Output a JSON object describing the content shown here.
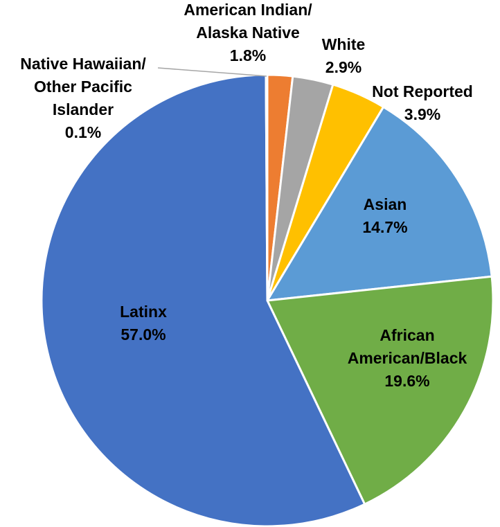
{
  "chart_data": {
    "type": "pie",
    "start_angle_deg": 0,
    "direction": "clockwise",
    "slices": [
      {
        "label_lines": [
          "American Indian/",
          "Alaska Native"
        ],
        "value": 1.8,
        "value_label": "1.8%",
        "color": "#ED7D31"
      },
      {
        "label_lines": [
          "White"
        ],
        "value": 2.9,
        "value_label": "2.9%",
        "color": "#A5A5A5"
      },
      {
        "label_lines": [
          "Not Reported"
        ],
        "value": 3.9,
        "value_label": "3.9%",
        "color": "#FFC000"
      },
      {
        "label_lines": [
          "Asian"
        ],
        "value": 14.7,
        "value_label": "14.7%",
        "color": "#5B9BD5"
      },
      {
        "label_lines": [
          "African",
          "American/Black"
        ],
        "value": 19.6,
        "value_label": "19.6%",
        "color": "#70AD47"
      },
      {
        "label_lines": [
          "Latinx"
        ],
        "value": 57.0,
        "value_label": "57.0%",
        "color": "#4472C4"
      },
      {
        "label_lines": [
          "Native Hawaiian/",
          "Other Pacific",
          "Islander"
        ],
        "value": 0.1,
        "value_label": "0.1%",
        "color": "#264478"
      }
    ],
    "slice_border_color": "#FFFFFF",
    "legend": "none"
  }
}
